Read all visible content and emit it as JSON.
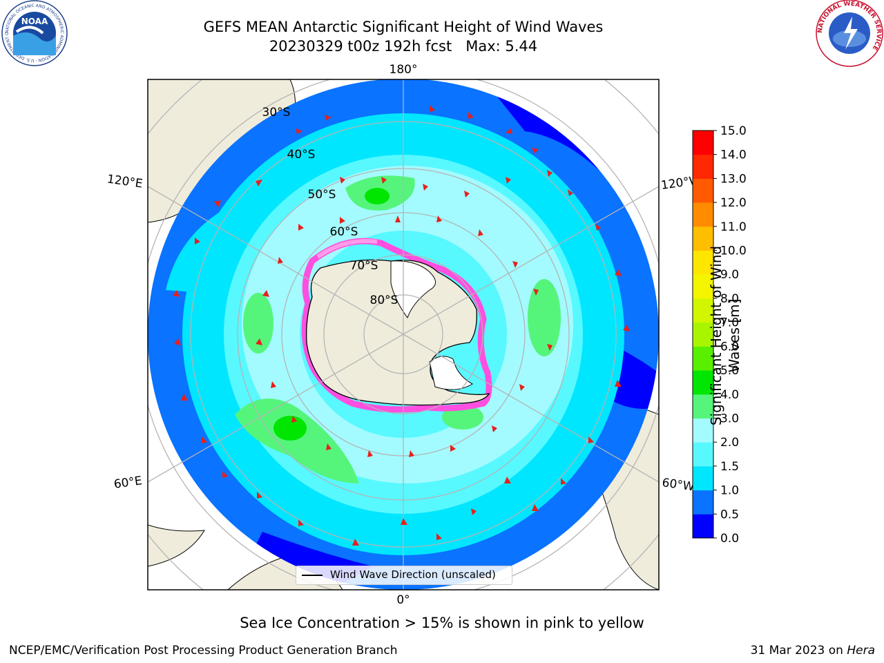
{
  "title": {
    "line1": "GEFS MEAN Antarctic Significant Height of Wind Waves",
    "line2": "20230329 t00z 192h fcst   Max: 5.44"
  },
  "map": {
    "projection": "south-polar stereographic",
    "lat_labels": [
      "30°S",
      "40°S",
      "50°S",
      "60°S",
      "70°S",
      "80°S"
    ],
    "lon_labels": {
      "top": "180°",
      "bottom": "0°",
      "upper_left": "120°E",
      "upper_right": "120°W",
      "lower_left": "60°E",
      "lower_right": "60°W"
    },
    "colors": {
      "land": "#efecdc",
      "ocean_outside": "#ffffff",
      "grid": "#b4b4b4",
      "arrow": "#e8201c"
    }
  },
  "legend": {
    "label": "Wind Wave Direction (unscaled)"
  },
  "colorbar": {
    "label": "Significant Height of Wind Waves [m]",
    "ticks": [
      "0.0",
      "0.5",
      "1.0",
      "1.5",
      "2.0",
      "3.0",
      "4.0",
      "5.0",
      "6.0",
      "7.0",
      "8.0",
      "9.0",
      "10.0",
      "11.0",
      "12.0",
      "13.0",
      "14.0",
      "15.0"
    ],
    "colors": [
      "#0000ff",
      "#0a73ff",
      "#00e6ff",
      "#58f8ff",
      "#a3fbff",
      "#55f57c",
      "#00e600",
      "#58f000",
      "#a9f500",
      "#d2f500",
      "#f5f500",
      "#ffe600",
      "#ffbe00",
      "#ff8c00",
      "#ff5a00",
      "#ff2800",
      "#ff0000"
    ]
  },
  "caption": "Sea Ice Concentration > 15% is shown in pink to yellow",
  "footer": {
    "left": "NCEP/EMC/Verification Post Processing Product Generation Branch",
    "right_date": "31 Mar 2023 on",
    "right_machine": "Hera"
  },
  "logos": {
    "left": "NOAA",
    "left_ring": "NATIONAL OCEANIC AND ATMOSPHERIC ADMINISTRATION · U.S. DEPARTMENT OF COMMERCE",
    "right_ring": "NATIONAL WEATHER SERVICE"
  }
}
